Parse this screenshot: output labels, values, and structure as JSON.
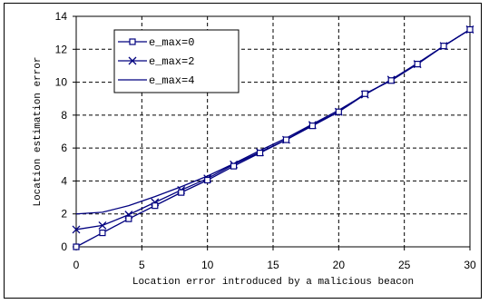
{
  "chart_data": {
    "type": "line",
    "title": "",
    "xlabel": "Location error introduced by a malicious beacon",
    "ylabel": "Location estimation error",
    "xlim": [
      0,
      30
    ],
    "ylim": [
      0,
      14
    ],
    "xticks": [
      0,
      5,
      10,
      15,
      20,
      25,
      30
    ],
    "yticks": [
      0,
      2,
      4,
      6,
      8,
      10,
      12,
      14
    ],
    "grid": "dashed",
    "legend_position": "top-left",
    "x": [
      0,
      2,
      4,
      6,
      8,
      10,
      12,
      14,
      16,
      18,
      20,
      22,
      24,
      26,
      28,
      30
    ],
    "series": [
      {
        "name": "e_max=0",
        "marker": "square",
        "color": "#00007f",
        "values": [
          0.0,
          0.85,
          1.7,
          2.5,
          3.3,
          4.05,
          4.9,
          5.7,
          6.5,
          7.35,
          8.2,
          9.3,
          10.1,
          11.1,
          12.2,
          13.2
        ]
      },
      {
        "name": "e_max=2",
        "marker": "x",
        "color": "#00007f",
        "values": [
          1.05,
          1.3,
          1.95,
          2.7,
          3.45,
          4.15,
          5.0,
          5.75,
          6.5,
          7.4,
          8.2,
          9.25,
          10.15,
          11.1,
          12.2,
          13.2
        ]
      },
      {
        "name": "e_max=4",
        "marker": "none",
        "color": "#00007f",
        "values": [
          2.0,
          2.1,
          2.5,
          3.05,
          3.65,
          4.3,
          5.05,
          5.85,
          6.6,
          7.45,
          8.3,
          9.25,
          10.15,
          11.15,
          12.2,
          13.2
        ]
      }
    ]
  }
}
